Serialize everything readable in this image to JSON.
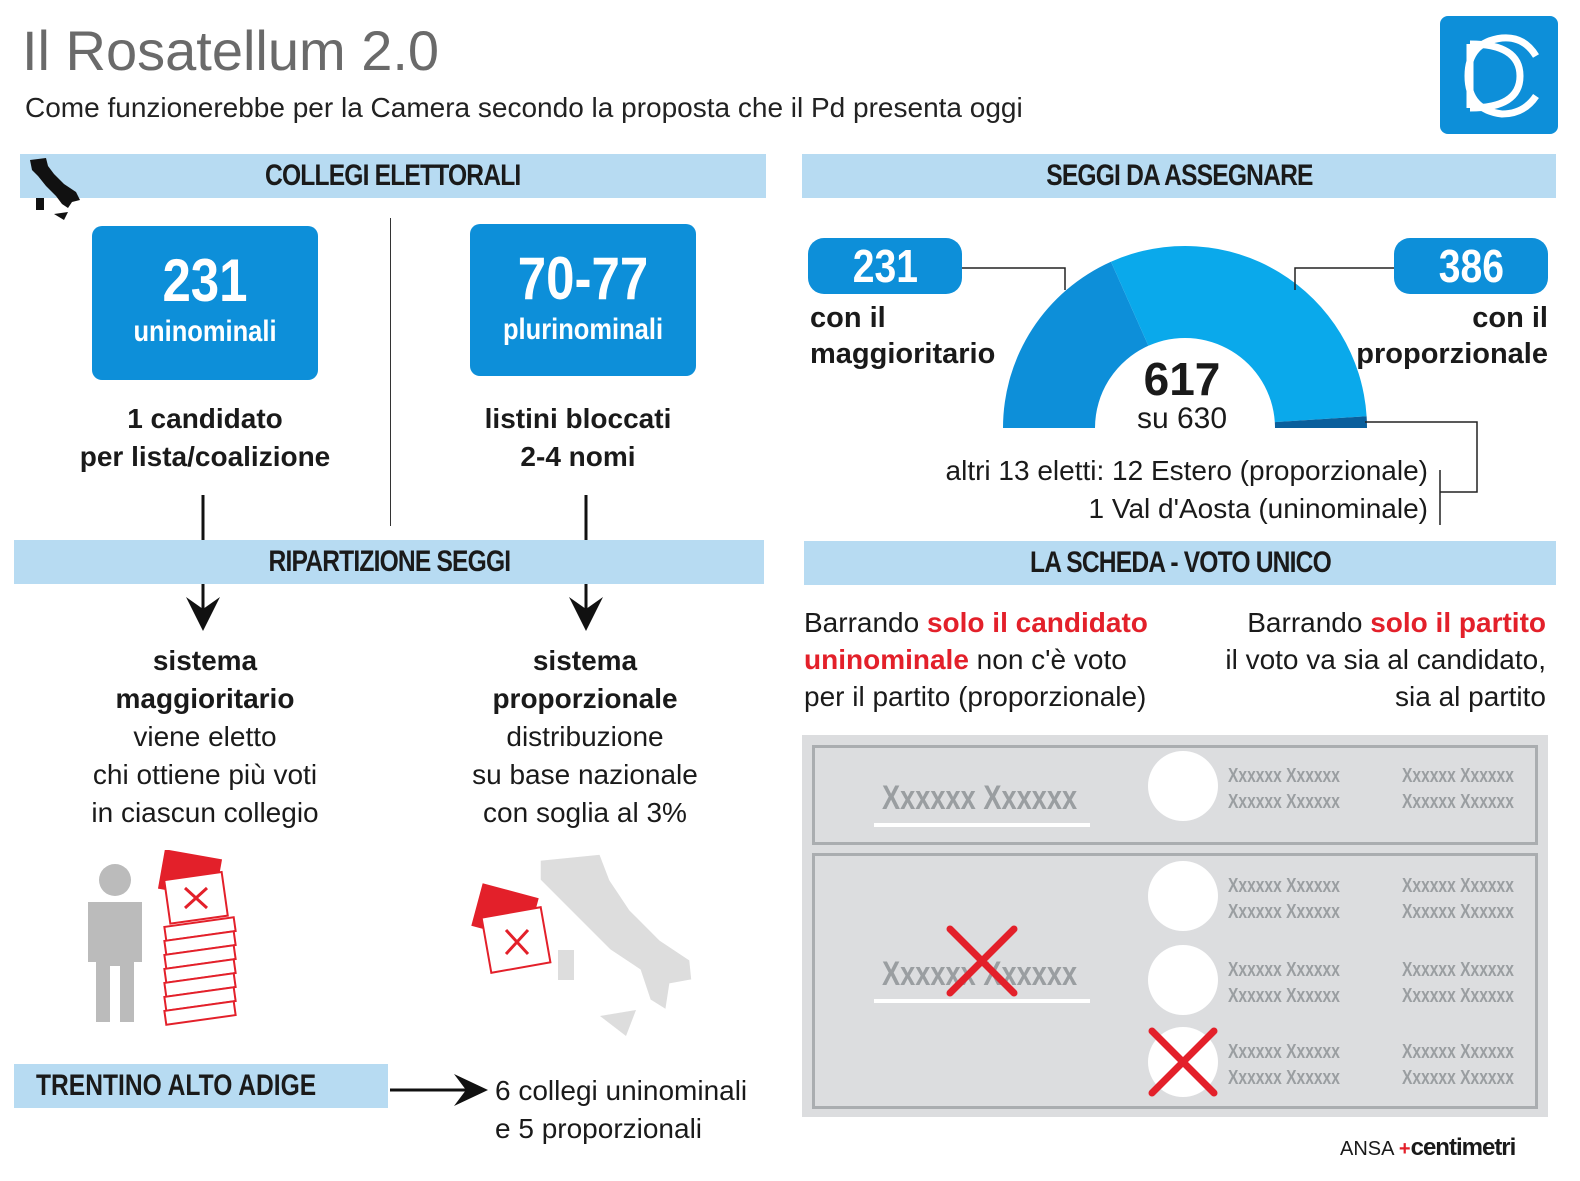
{
  "header": {
    "title": "Il Rosatellum 2.0",
    "subtitle": "Come funzionerebbe per la Camera secondo la proposta che il Pd presenta oggi",
    "logo": "camera-dei-deputati-logo"
  },
  "collegi": {
    "title": "COLLEGI ELETTORALI",
    "left": {
      "number": "231",
      "label": "uninominali",
      "desc1": "1 candidato",
      "desc2": "per lista/coalizione"
    },
    "right": {
      "number": "70-77",
      "label": "plurinominali",
      "desc1": "listini bloccati",
      "desc2": "2-4 nomi"
    }
  },
  "ripartizione": {
    "title": "RIPARTIZIONE SEGGI",
    "left": {
      "h1": "sistema",
      "h2": "maggioritario",
      "l1": "viene eletto",
      "l2": "chi ottiene più voti",
      "l3": "in ciascun collegio"
    },
    "right": {
      "h1": "sistema",
      "h2": "proporzionale",
      "l1": "distribuzione",
      "l2": "su base nazionale",
      "l3": "con soglia al 3%"
    }
  },
  "trentino": {
    "label": "TRENTINO ALTO ADIGE",
    "l1": "6 collegi uninominali",
    "l2": "e 5 proporzionali"
  },
  "seggi": {
    "title": "SEGGI DA ASSEGNARE",
    "left": {
      "number": "231",
      "l1": "con il",
      "l2": "maggioritario"
    },
    "right": {
      "number": "386",
      "l1": "con il",
      "l2": "proporzionale"
    },
    "center": {
      "number": "617",
      "sub": "su 630"
    },
    "altri1": "altri 13 eletti: 12 Estero (proporzionale)",
    "altri2": "1 Val d'Aosta (uninominale)"
  },
  "chart_data": {
    "type": "pie",
    "shape": "half-donut",
    "total": 630,
    "slices": [
      {
        "label": "con il maggioritario",
        "value": 231,
        "color": "#0d8fd9"
      },
      {
        "label": "con il proporzionale",
        "value": 386,
        "color": "#0aa9eb"
      },
      {
        "label": "altri 13 eletti",
        "value": 13,
        "color": "#0a5f9c"
      }
    ]
  },
  "scheda": {
    "title": "LA SCHEDA - VOTO UNICO",
    "left": {
      "a": "Barrando ",
      "b": "solo il candidato",
      "c": "uninominale",
      "d": " non c'è voto",
      "e": "per il partito (proporzionale)"
    },
    "right": {
      "a": "Barrando ",
      "b": "solo il partito",
      "c": "il voto va sia al candidato,",
      "d": "sia al partito"
    },
    "placeholder": "Xxxxxx Xxxxxx"
  },
  "footer": {
    "ansa": "ANSA",
    "brand": "centimetri"
  },
  "colors": {
    "blue": "#0d8fd9",
    "band": "#b7dbf2",
    "red": "#e3202a",
    "ballot": "#dcdddf"
  }
}
